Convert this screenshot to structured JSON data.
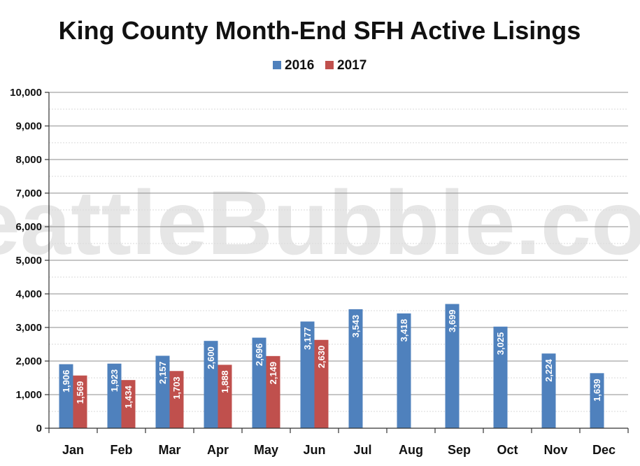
{
  "watermark": "SeattleBubble.com",
  "chart_data": {
    "type": "bar",
    "title": "King County Month-End SFH Active Lisings",
    "xlabel": "",
    "ylabel": "",
    "categories": [
      "Jan",
      "Feb",
      "Mar",
      "Apr",
      "May",
      "Jun",
      "Jul",
      "Aug",
      "Sep",
      "Oct",
      "Nov",
      "Dec"
    ],
    "series": [
      {
        "name": "2016",
        "color": "#4f81bd",
        "values": [
          1906,
          1923,
          2157,
          2600,
          2696,
          3177,
          3543,
          3418,
          3699,
          3025,
          2224,
          1639
        ]
      },
      {
        "name": "2017",
        "color": "#c0504d",
        "values": [
          1569,
          1434,
          1703,
          1888,
          2149,
          2630,
          null,
          null,
          null,
          null,
          null,
          null
        ]
      }
    ],
    "ylim": [
      0,
      10000
    ],
    "yticks": [
      0,
      1000,
      2000,
      3000,
      4000,
      5000,
      6000,
      7000,
      8000,
      9000,
      10000
    ],
    "ytick_labels": [
      "0",
      "1,000",
      "2,000",
      "3,000",
      "4,000",
      "5,000",
      "6,000",
      "7,000",
      "8,000",
      "9,000",
      "10,000"
    ],
    "data_labels": [
      [
        "1,906",
        "1,923",
        "2,157",
        "2,600",
        "2,696",
        "3,177",
        "3,543",
        "3,418",
        "3,699",
        "3,025",
        "2,224",
        "1,639"
      ],
      [
        "1,569",
        "1,434",
        "1,703",
        "1,888",
        "2,149",
        "2,630",
        "",
        "",
        "",
        "",
        "",
        ""
      ]
    ],
    "grid": true,
    "legend": "top-center"
  }
}
